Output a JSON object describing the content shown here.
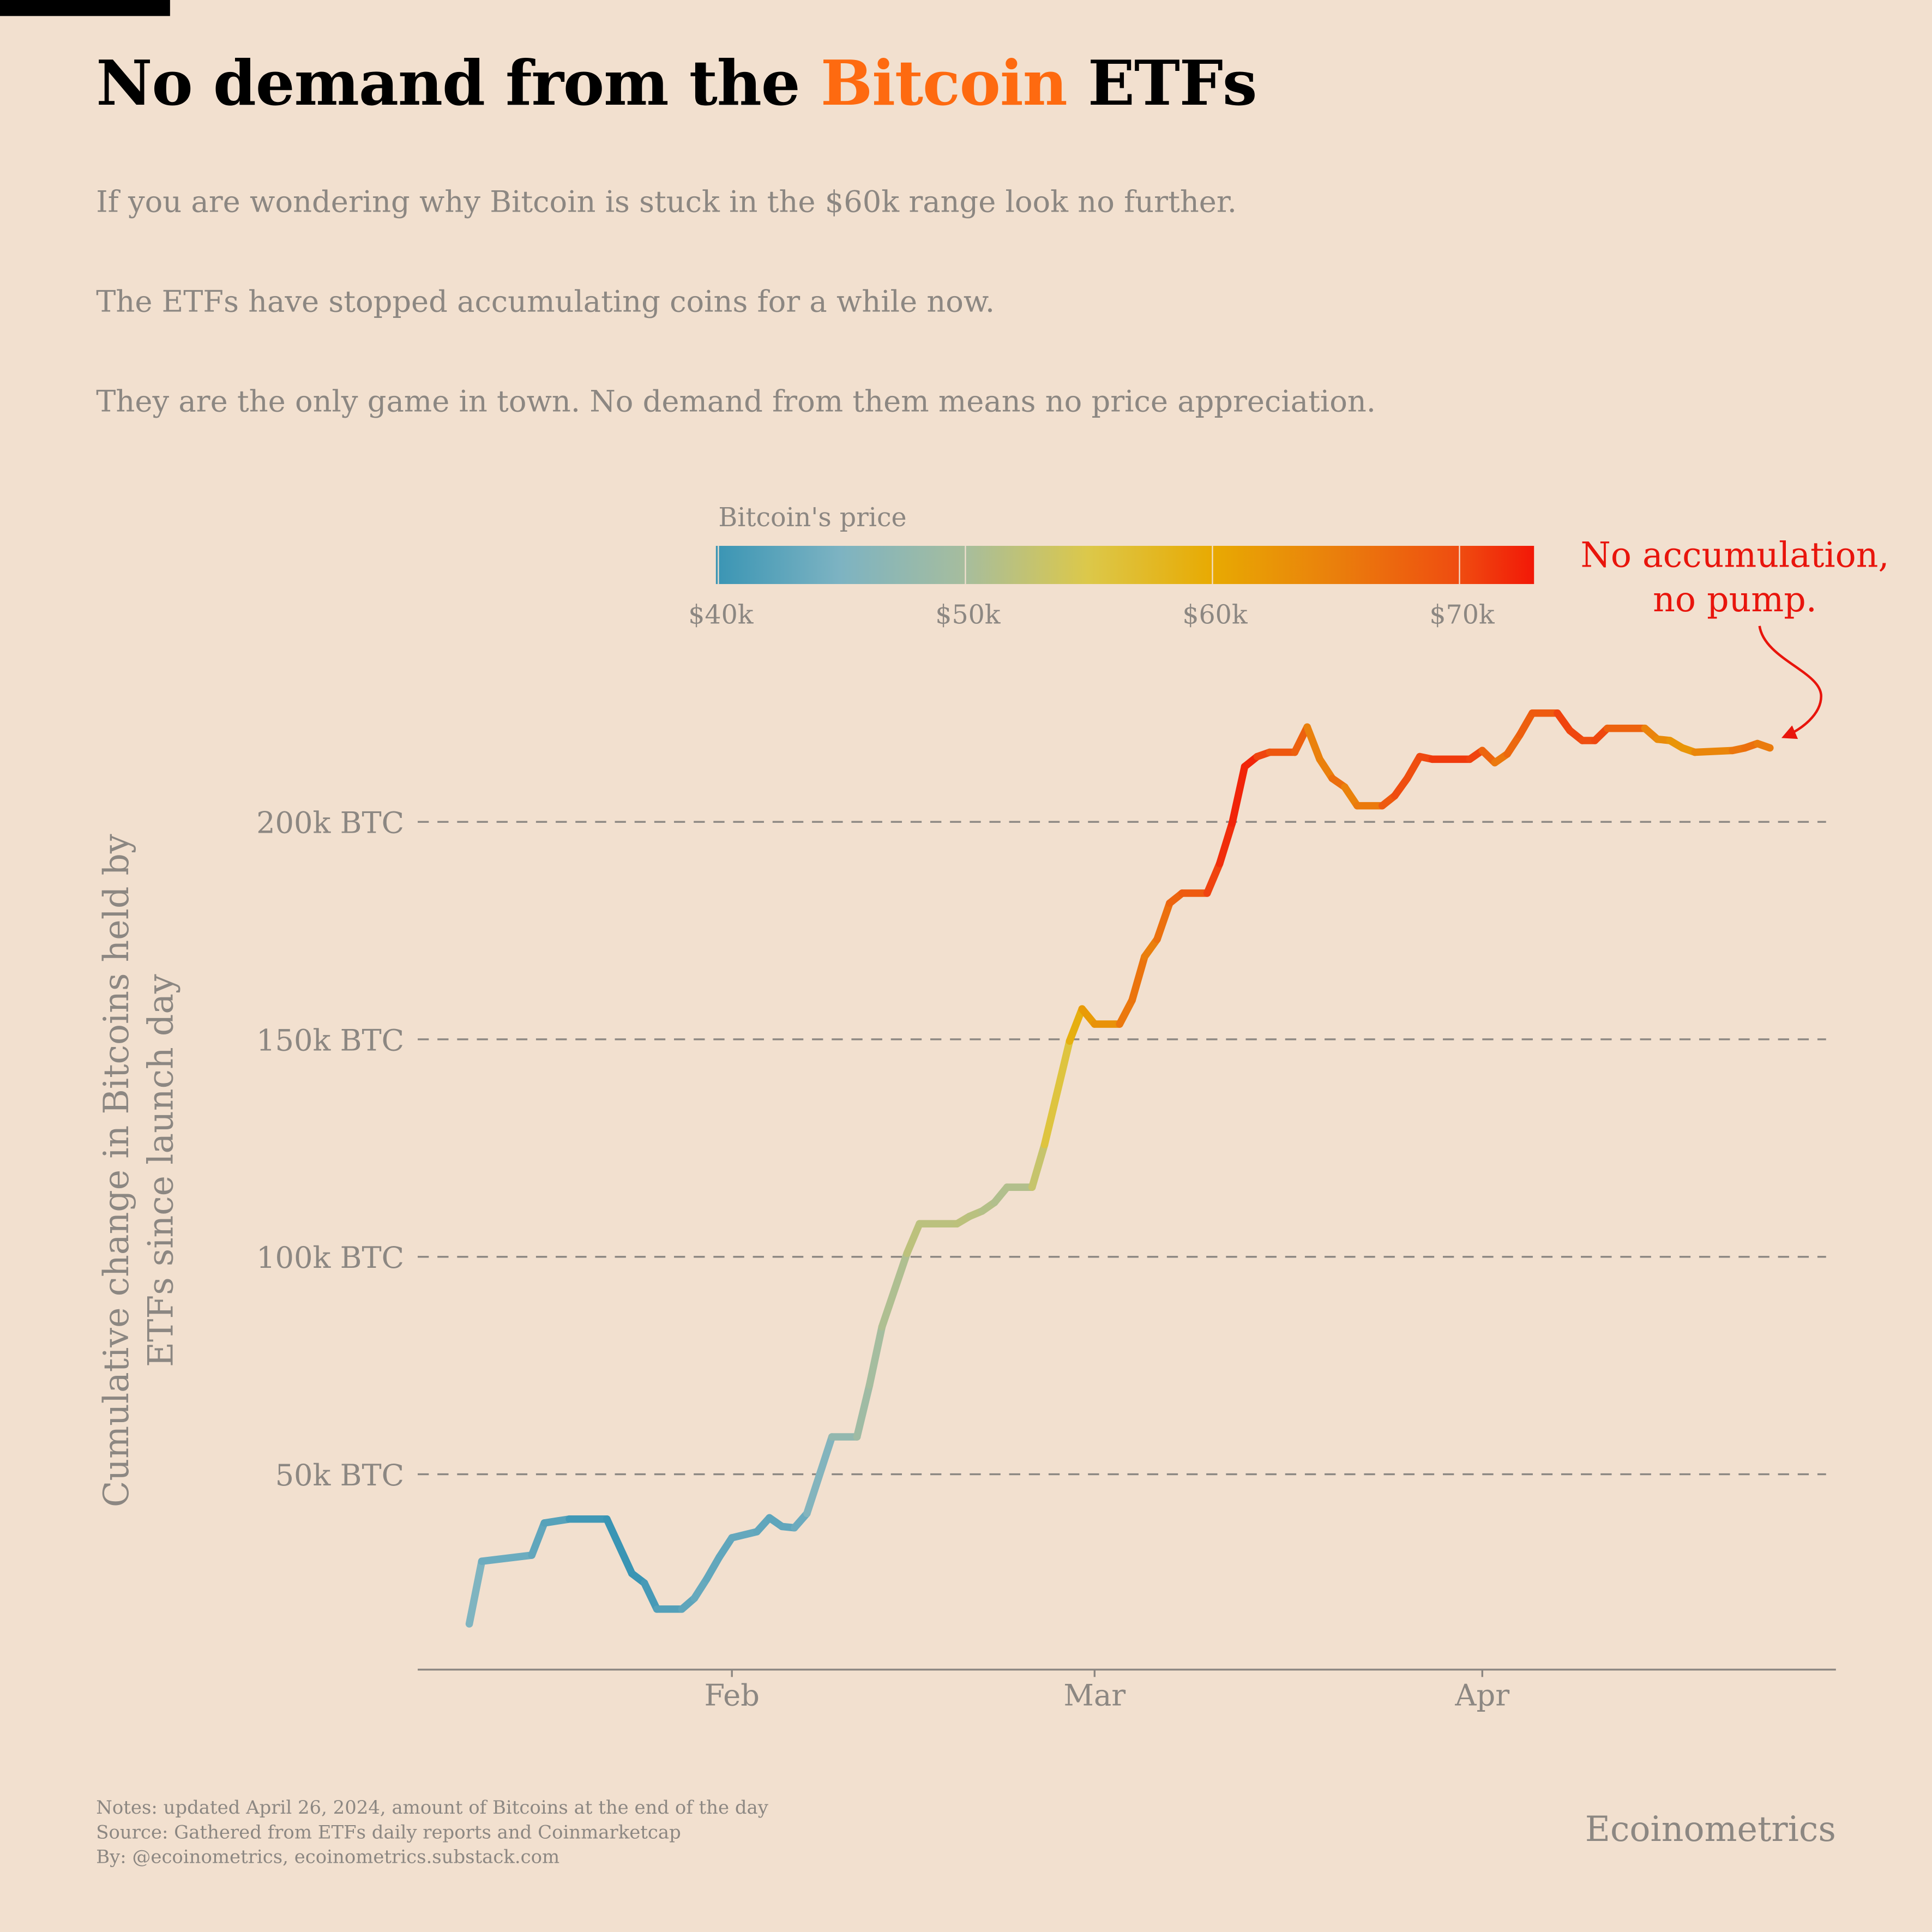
{
  "header": {
    "title_pre": "No demand from the ",
    "title_highlight": "Bitcoin",
    "title_post": " ETFs",
    "subtitles": [
      "If you are wondering why Bitcoin is stuck in the $60k range look no further.",
      "The ETFs have stopped accumulating coins for a while now.",
      "They are the only game in town. No demand from them means no price appreciation."
    ]
  },
  "footer": {
    "notes": [
      "Notes: updated April 26, 2024, amount of Bitcoins at the end of the day",
      "Source: Gathered from ETFs daily reports and Coinmarketcap",
      "By: @ecoinometrics, ecoinometrics.substack.com"
    ],
    "brand": "Ecoinometrics"
  },
  "colors": {
    "accent": "#fe6a10",
    "annotation": "#e8150c",
    "grid": "#8c8782"
  },
  "chart_data": {
    "type": "line",
    "title": "No demand from the Bitcoin ETFs",
    "ylabel": "Cumulative change in Bitcoins held by ETFs since launch day",
    "xlabel": "",
    "ylim": [
      0,
      230000
    ],
    "yticks": [
      50000,
      100000,
      150000,
      200000
    ],
    "ytick_labels": [
      "50k BTC",
      "100k BTC",
      "150k BTC",
      "200k BTC"
    ],
    "xticks": [
      "2024-02-01",
      "2024-03-01",
      "2024-04-01"
    ],
    "xtick_labels": [
      "Feb",
      "Mar",
      "Apr"
    ],
    "grid": "horizontal dashed",
    "colorbar": {
      "title": "Bitcoin's price",
      "range": [
        40000,
        73000
      ],
      "ticks": [
        40000,
        50000,
        60000,
        70000
      ],
      "tick_labels": [
        "$40k",
        "$50k",
        "$60k",
        "$70k"
      ],
      "stops": [
        [
          40000,
          "#3a95b4"
        ],
        [
          45000,
          "#7db3c2"
        ],
        [
          50000,
          "#a6bd9e"
        ],
        [
          55000,
          "#dcc84a"
        ],
        [
          60000,
          "#e8aa02"
        ],
        [
          65000,
          "#ea7f0c"
        ],
        [
          70000,
          "#ef4c10"
        ],
        [
          73000,
          "#f21807"
        ]
      ]
    },
    "annotation": "No accumulation,\nno pump.",
    "annotation_lines": [
      "No accumulation,",
      "no pump."
    ],
    "series": [
      {
        "name": "Cumulative BTC held",
        "points": [
          [
            "2024-01-11",
            15600,
            46000
          ],
          [
            "2024-01-12",
            30000,
            44500
          ],
          [
            "2024-01-16",
            31400,
            43000
          ],
          [
            "2024-01-17",
            38800,
            42800
          ],
          [
            "2024-01-19",
            39700,
            41600
          ],
          [
            "2024-01-22",
            39700,
            39500
          ],
          [
            "2024-01-24",
            27200,
            40000
          ],
          [
            "2024-01-25",
            25000,
            40000
          ],
          [
            "2024-01-26",
            19000,
            41800
          ],
          [
            "2024-01-28",
            19000,
            42000
          ],
          [
            "2024-01-29",
            21500,
            43300
          ],
          [
            "2024-01-30",
            26000,
            43300
          ],
          [
            "2024-01-31",
            31000,
            42600
          ],
          [
            "2024-02-01",
            35400,
            43000
          ],
          [
            "2024-02-03",
            36800,
            43200
          ],
          [
            "2024-02-04",
            40000,
            42600
          ],
          [
            "2024-02-05",
            38000,
            42700
          ],
          [
            "2024-02-06",
            37700,
            43100
          ],
          [
            "2024-02-07",
            41000,
            44300
          ],
          [
            "2024-02-09",
            58600,
            47100
          ],
          [
            "2024-02-11",
            58600,
            48300
          ],
          [
            "2024-02-12",
            70500,
            50000
          ],
          [
            "2024-02-13",
            83900,
            49700
          ],
          [
            "2024-02-15",
            100800,
            51900
          ],
          [
            "2024-02-16",
            107600,
            52100
          ],
          [
            "2024-02-19",
            107600,
            51700
          ],
          [
            "2024-02-20",
            109300,
            52300
          ],
          [
            "2024-02-21",
            110500,
            51300
          ],
          [
            "2024-02-22",
            112500,
            51300
          ],
          [
            "2024-02-23",
            116000,
            50700
          ],
          [
            "2024-02-25",
            116000,
            51500
          ],
          [
            "2024-02-26",
            125800,
            54500
          ],
          [
            "2024-02-28",
            149600,
            57000
          ],
          [
            "2024-02-29",
            157000,
            61200
          ],
          [
            "2024-03-01",
            153500,
            62400
          ],
          [
            "2024-03-03",
            153500,
            63100
          ],
          [
            "2024-03-04",
            159000,
            68300
          ],
          [
            "2024-03-05",
            169000,
            63800
          ],
          [
            "2024-03-06",
            173000,
            66100
          ],
          [
            "2024-03-07",
            181300,
            66900
          ],
          [
            "2024-03-08",
            183600,
            68300
          ],
          [
            "2024-03-10",
            183600,
            68900
          ],
          [
            "2024-03-11",
            190400,
            72100
          ],
          [
            "2024-03-12",
            199700,
            71500
          ],
          [
            "2024-03-13",
            212700,
            73100
          ],
          [
            "2024-03-14",
            215000,
            71400
          ],
          [
            "2024-03-15",
            216000,
            69400
          ],
          [
            "2024-03-17",
            216000,
            68400
          ],
          [
            "2024-03-18",
            221800,
            67600
          ],
          [
            "2024-03-19",
            214400,
            61900
          ],
          [
            "2024-03-20",
            210000,
            67900
          ],
          [
            "2024-03-21",
            208000,
            65500
          ],
          [
            "2024-03-22",
            203700,
            63800
          ],
          [
            "2024-03-24",
            203700,
            67200
          ],
          [
            "2024-03-25",
            206000,
            70000
          ],
          [
            "2024-03-26",
            210000,
            69900
          ],
          [
            "2024-03-27",
            215000,
            69500
          ],
          [
            "2024-03-28",
            214400,
            70800
          ],
          [
            "2024-03-31",
            214400,
            71300
          ],
          [
            "2024-04-01",
            216400,
            69700
          ],
          [
            "2024-04-02",
            213600,
            65400
          ],
          [
            "2024-04-03",
            215600,
            66000
          ],
          [
            "2024-04-04",
            220000,
            68500
          ],
          [
            "2024-04-05",
            225000,
            67800
          ],
          [
            "2024-04-07",
            225000,
            69400
          ],
          [
            "2024-04-08",
            221000,
            71600
          ],
          [
            "2024-04-09",
            218700,
            69100
          ],
          [
            "2024-04-10",
            218700,
            70600
          ],
          [
            "2024-04-11",
            221500,
            70000
          ],
          [
            "2024-04-14",
            221500,
            65700
          ],
          [
            "2024-04-15",
            219000,
            63400
          ],
          [
            "2024-04-16",
            218700,
            63800
          ],
          [
            "2024-04-17",
            217000,
            61300
          ],
          [
            "2024-04-18",
            216000,
            63500
          ],
          [
            "2024-04-21",
            216400,
            64900
          ],
          [
            "2024-04-22",
            217000,
            66800
          ],
          [
            "2024-04-23",
            218000,
            66400
          ],
          [
            "2024-04-24",
            217000,
            64300
          ]
        ]
      }
    ]
  }
}
